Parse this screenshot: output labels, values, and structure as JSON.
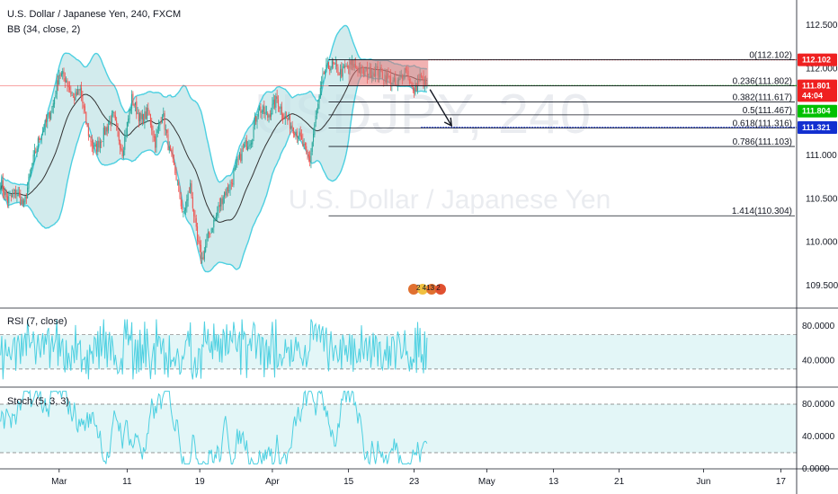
{
  "header": {
    "title": "U.S. Dollar / Japanese Yen, 240, FXCM",
    "indicator": "BB (34, close, 2)"
  },
  "watermark": {
    "symbol": "USDJPY, 240",
    "name": "U.S. Dollar / Japanese Yen"
  },
  "colors": {
    "bull": "#26a69a",
    "bear": "#ef5350",
    "band": "#4dd0e1",
    "bandFill": "#bfe3e6",
    "basis": "#333333",
    "osc": "#4dd0e1",
    "red": "#ef2020",
    "green": "#00c000",
    "blue": "#1330d0"
  },
  "chart_data": [
    {
      "type": "candlestick",
      "title": "U.S. Dollar / Japanese Yen, 240, FXCM",
      "ylim": [
        109.25,
        112.75
      ],
      "y_ticks": [
        "112.500",
        "112.000",
        "111.500",
        "111.000",
        "110.500",
        "110.000",
        "109.500"
      ],
      "y_tick_values": [
        112.5,
        112.0,
        111.5,
        111.0,
        110.5,
        110.0,
        109.5
      ],
      "x_ticks": [
        "Mar",
        "11",
        "19",
        "Apr",
        "15",
        "23",
        "May",
        "13",
        "21",
        "Jun",
        "17"
      ],
      "x_tick_bars": [
        50,
        108,
        170,
        232,
        297,
        353,
        415,
        472,
        528,
        600,
        666
      ],
      "bars_total": 680,
      "bars_shown": 365,
      "anchors": [
        [
          0,
          110.68
        ],
        [
          6,
          110.48
        ],
        [
          13,
          110.58
        ],
        [
          20,
          110.42
        ],
        [
          27,
          110.9
        ],
        [
          33,
          111.2
        ],
        [
          40,
          111.4
        ],
        [
          45,
          111.6
        ],
        [
          50,
          111.95
        ],
        [
          56,
          111.88
        ],
        [
          62,
          111.65
        ],
        [
          68,
          111.75
        ],
        [
          74,
          111.3
        ],
        [
          80,
          111.05
        ],
        [
          88,
          111.25
        ],
        [
          96,
          111.45
        ],
        [
          104,
          111.05
        ],
        [
          112,
          111.65
        ],
        [
          120,
          111.4
        ],
        [
          126,
          111.5
        ],
        [
          132,
          111.15
        ],
        [
          138,
          111.5
        ],
        [
          144,
          111.05
        ],
        [
          150,
          110.75
        ],
        [
          156,
          110.3
        ],
        [
          162,
          110.65
        ],
        [
          168,
          110.0
        ],
        [
          172,
          109.8
        ],
        [
          178,
          110.1
        ],
        [
          184,
          110.3
        ],
        [
          190,
          110.55
        ],
        [
          196,
          110.65
        ],
        [
          202,
          110.9
        ],
        [
          208,
          111.1
        ],
        [
          214,
          111.2
        ],
        [
          220,
          111.55
        ],
        [
          228,
          111.45
        ],
        [
          236,
          111.65
        ],
        [
          242,
          111.45
        ],
        [
          248,
          111.35
        ],
        [
          254,
          111.25
        ],
        [
          260,
          111.05
        ],
        [
          264,
          110.95
        ],
        [
          268,
          111.35
        ],
        [
          272,
          111.65
        ],
        [
          276,
          111.95
        ],
        [
          282,
          112.05
        ],
        [
          290,
          111.95
        ],
        [
          300,
          112.05
        ],
        [
          310,
          111.95
        ],
        [
          320,
          111.98
        ],
        [
          330,
          111.9
        ],
        [
          338,
          111.8
        ],
        [
          346,
          112.02
        ],
        [
          352,
          111.72
        ],
        [
          358,
          111.9
        ],
        [
          364,
          111.78
        ]
      ],
      "price_tags": [
        {
          "label": "112.102",
          "value": 112.102,
          "color": "#ef2020"
        },
        {
          "label": "111.801",
          "value": 111.801,
          "color": "#ef2020"
        },
        {
          "label": "44:04",
          "value": 111.69,
          "color": "#ef2020"
        },
        {
          "label": "111.804",
          "value": 111.51,
          "color": "#00c000"
        },
        {
          "label": "111.321",
          "value": 111.321,
          "color": "#1330d0"
        }
      ],
      "fib_levels": [
        {
          "label": "0(112.102)",
          "value": 112.102
        },
        {
          "label": "0.236(111.802)",
          "value": 111.802
        },
        {
          "label": "0.382(111.617)",
          "value": 111.617
        },
        {
          "label": "0.5(111.467)",
          "value": 111.467
        },
        {
          "label": "0.618(111.316)",
          "value": 111.316
        },
        {
          "label": "0.786(111.103)",
          "value": 111.103
        },
        {
          "label": "1.414(110.304)",
          "value": 110.304
        }
      ],
      "current_price": 111.801,
      "target_price": 111.321,
      "support_price": 111.804,
      "zone": {
        "from_bar": 297,
        "to_bar": 365,
        "low": 111.8,
        "high": 112.102
      }
    },
    {
      "type": "line",
      "title": "RSI (7, close)",
      "ylim": [
        10,
        100
      ],
      "y_ticks": [
        "80.0000",
        "40.0000"
      ],
      "y_tick_values": [
        80,
        40
      ],
      "band": [
        30,
        70
      ]
    },
    {
      "type": "line",
      "title": "Stoch (5, 3, 3)",
      "ylim": [
        0,
        100
      ],
      "y_ticks": [
        "80.0000",
        "40.0000",
        "0.0000"
      ],
      "y_tick_values": [
        80,
        40,
        0
      ],
      "band": [
        20,
        80
      ]
    }
  ]
}
